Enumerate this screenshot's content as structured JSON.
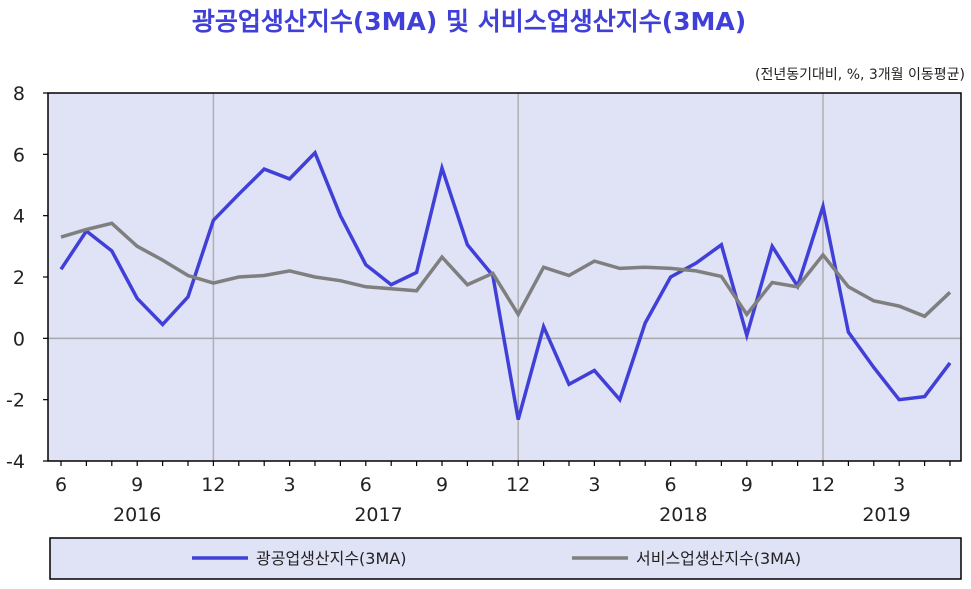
{
  "chart_data": {
    "type": "line",
    "title": "광공업생산지수(3MA)  및  서비스업생산지수(3MA)",
    "unit_note": "(전년동기대비,   %, 3개월  이동평균)",
    "ylim": [
      -4,
      8
    ],
    "yticks": [
      8,
      6,
      4,
      2,
      0,
      -2,
      -4
    ],
    "x": [
      "2016-06",
      "2016-07",
      "2016-08",
      "2016-09",
      "2016-10",
      "2016-11",
      "2016-12",
      "2017-01",
      "2017-02",
      "2017-03",
      "2017-04",
      "2017-05",
      "2017-06",
      "2017-07",
      "2017-08",
      "2017-09",
      "2017-10",
      "2017-11",
      "2017-12",
      "2018-01",
      "2018-02",
      "2018-03",
      "2018-04",
      "2018-05",
      "2018-06",
      "2018-07",
      "2018-08",
      "2018-09",
      "2018-10",
      "2018-11",
      "2018-12",
      "2019-01",
      "2019-02",
      "2019-03",
      "2019-04",
      "2019-05"
    ],
    "month_ticks": [
      "6",
      "9",
      "12",
      "3",
      "6",
      "9",
      "12",
      "3",
      "6",
      "9",
      "12",
      "3"
    ],
    "month_tick_index": [
      0,
      3,
      6,
      9,
      12,
      15,
      18,
      21,
      24,
      27,
      30,
      33
    ],
    "year_labels": [
      "2016",
      "2017",
      "2018",
      "2019"
    ],
    "year_label_index": [
      3,
      12.5,
      24.5,
      32.5
    ],
    "grid_x_index": [
      6,
      18,
      30
    ],
    "background": "#e0e2f6",
    "zero_line_color": "#a8a8a8",
    "series": [
      {
        "name": "광공업생산지수(3MA)",
        "color": "#4040d8",
        "values": [
          2.25,
          3.5,
          2.85,
          1.3,
          0.45,
          1.35,
          3.85,
          4.7,
          5.52,
          5.2,
          6.05,
          4.0,
          2.4,
          1.75,
          2.15,
          5.55,
          3.05,
          2.05,
          -2.65,
          0.38,
          -1.5,
          -1.05,
          -2.0,
          0.5,
          2.0,
          2.45,
          3.05,
          0.1,
          3.0,
          1.7,
          4.3,
          0.2,
          -0.95,
          -2.0,
          -1.9,
          -0.8
        ]
      },
      {
        "name": "서비스업생산지수(3MA)",
        "color": "#7f7f7f",
        "values": [
          3.3,
          3.55,
          3.75,
          3.0,
          2.55,
          2.05,
          1.8,
          2.0,
          2.05,
          2.2,
          2.0,
          1.88,
          1.68,
          1.62,
          1.55,
          2.65,
          1.75,
          2.12,
          0.78,
          2.32,
          2.05,
          2.52,
          2.28,
          2.32,
          2.28,
          2.2,
          2.02,
          0.78,
          1.82,
          1.68,
          2.72,
          1.68,
          1.22,
          1.05,
          0.72,
          1.5
        ]
      }
    ]
  }
}
